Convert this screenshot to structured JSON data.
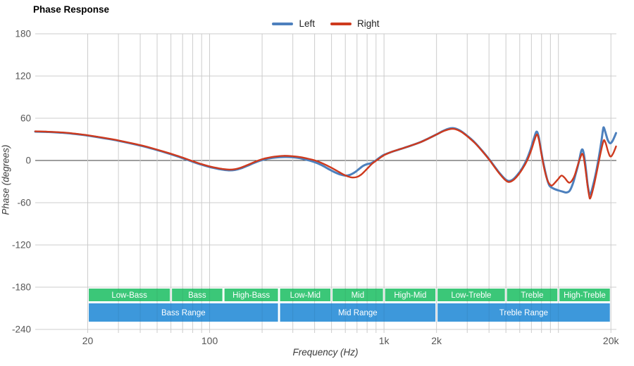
{
  "title": "Phase Response",
  "legend": {
    "items": [
      {
        "label": "Left"
      },
      {
        "label": "Right"
      }
    ]
  },
  "colors": {
    "left_series": "#4d80bd",
    "right_series": "#ce3a1e",
    "grid": "#cccccc",
    "zero_line": "#3c3c3c",
    "tick_text": "#565656",
    "band_sub": "#3bc778",
    "band_range": "#3d98db",
    "band_text": "#ffffff"
  },
  "chart_data": {
    "type": "line",
    "title": "Phase Response",
    "xlabel": "Frequency (Hz)",
    "ylabel": "Phase (degrees)",
    "x_scale": "log",
    "xlim_hz": [
      10,
      21500
    ],
    "ylim_degrees": [
      -240,
      180
    ],
    "grid": "on",
    "legend_position": "top-center",
    "y_ticks": [
      180,
      120,
      60,
      0,
      -60,
      -120,
      -180,
      -240
    ],
    "x_ticks": [
      {
        "label": "20",
        "hz": 20
      },
      {
        "label": "100",
        "hz": 100
      },
      {
        "label": "1k",
        "hz": 1000
      },
      {
        "label": "2k",
        "hz": 2000
      },
      {
        "label": "20k",
        "hz": 20000
      }
    ],
    "x_gridlines_hz": [
      20,
      30,
      40,
      50,
      60,
      70,
      80,
      90,
      100,
      200,
      300,
      400,
      500,
      600,
      700,
      800,
      900,
      1000,
      2000,
      3000,
      4000,
      5000,
      6000,
      7000,
      8000,
      9000,
      10000,
      20000
    ],
    "frequency_bands": {
      "sub_bands": [
        {
          "label": "Low-Bass",
          "from_hz": 20,
          "to_hz": 60
        },
        {
          "label": "Bass",
          "from_hz": 60,
          "to_hz": 120
        },
        {
          "label": "High-Bass",
          "from_hz": 120,
          "to_hz": 250
        },
        {
          "label": "Low-Mid",
          "from_hz": 250,
          "to_hz": 500
        },
        {
          "label": "Mid",
          "from_hz": 500,
          "to_hz": 1000
        },
        {
          "label": "High-Mid",
          "from_hz": 1000,
          "to_hz": 2000
        },
        {
          "label": "Low-Treble",
          "from_hz": 2000,
          "to_hz": 5000
        },
        {
          "label": "Treble",
          "from_hz": 5000,
          "to_hz": 10000
        },
        {
          "label": "High-Treble",
          "from_hz": 10000,
          "to_hz": 20000
        }
      ],
      "range_bands": [
        {
          "label": "Bass Range",
          "from_hz": 20,
          "to_hz": 250
        },
        {
          "label": "Mid Range",
          "from_hz": 250,
          "to_hz": 2000
        },
        {
          "label": "Treble Range",
          "from_hz": 2000,
          "to_hz": 20000
        }
      ]
    },
    "series": [
      {
        "name": "Left",
        "color": "#4d80bd",
        "stroke_width": 3,
        "points_hz_deg": [
          [
            10,
            41
          ],
          [
            11.5,
            40.6
          ],
          [
            13,
            40
          ],
          [
            15,
            39
          ],
          [
            17,
            37.6
          ],
          [
            20,
            35.4
          ],
          [
            23,
            33
          ],
          [
            26,
            30.8
          ],
          [
            30,
            28
          ],
          [
            35,
            24.5
          ],
          [
            40,
            21.2
          ],
          [
            45,
            18
          ],
          [
            50,
            14.8
          ],
          [
            56,
            11.2
          ],
          [
            63,
            7.2
          ],
          [
            71,
            2.8
          ],
          [
            80,
            -1.8
          ],
          [
            90,
            -6
          ],
          [
            100,
            -9.3
          ],
          [
            110,
            -11.5
          ],
          [
            120,
            -13.2
          ],
          [
            130,
            -14
          ],
          [
            140,
            -13.4
          ],
          [
            150,
            -11.5
          ],
          [
            165,
            -7.5
          ],
          [
            180,
            -3.4
          ],
          [
            195,
            -0.2
          ],
          [
            215,
            2.6
          ],
          [
            240,
            4.3
          ],
          [
            270,
            5
          ],
          [
            300,
            4.6
          ],
          [
            330,
            3.2
          ],
          [
            355,
            1.3
          ],
          [
            380,
            -0.6
          ],
          [
            410,
            -3.4
          ],
          [
            445,
            -7.4
          ],
          [
            480,
            -12
          ],
          [
            520,
            -16.5
          ],
          [
            560,
            -19.8
          ],
          [
            600,
            -21.5
          ],
          [
            640,
            -20.3
          ],
          [
            680,
            -16.8
          ],
          [
            720,
            -12
          ],
          [
            760,
            -7.6
          ],
          [
            800,
            -5.2
          ],
          [
            840,
            -4
          ],
          [
            880,
            -1.4
          ],
          [
            920,
            2
          ],
          [
            960,
            5.4
          ],
          [
            1000,
            8
          ],
          [
            1100,
            12
          ],
          [
            1250,
            16.4
          ],
          [
            1400,
            20.4
          ],
          [
            1600,
            25.6
          ],
          [
            1800,
            31.4
          ],
          [
            2000,
            37
          ],
          [
            2200,
            42.4
          ],
          [
            2400,
            45.8
          ],
          [
            2550,
            45.6
          ],
          [
            2750,
            42
          ],
          [
            3000,
            35
          ],
          [
            3300,
            26
          ],
          [
            3650,
            14
          ],
          [
            4000,
            2
          ],
          [
            4300,
            -8.5
          ],
          [
            4600,
            -18
          ],
          [
            4900,
            -25.5
          ],
          [
            5150,
            -29
          ],
          [
            5450,
            -27.5
          ],
          [
            5800,
            -21
          ],
          [
            6200,
            -11
          ],
          [
            6600,
            2
          ],
          [
            6950,
            17
          ],
          [
            7250,
            32
          ],
          [
            7500,
            41
          ],
          [
            7700,
            34
          ],
          [
            7900,
            18
          ],
          [
            8100,
            3
          ],
          [
            8300,
            -10
          ],
          [
            8600,
            -26
          ],
          [
            8900,
            -36
          ],
          [
            9400,
            -40
          ],
          [
            10000,
            -42.5
          ],
          [
            10600,
            -44.3
          ],
          [
            11100,
            -45.5
          ],
          [
            11600,
            -43
          ],
          [
            12100,
            -33
          ],
          [
            12600,
            -18
          ],
          [
            13100,
            -2
          ],
          [
            13500,
            13
          ],
          [
            13800,
            15
          ],
          [
            14100,
            4
          ],
          [
            14400,
            -14
          ],
          [
            14700,
            -34
          ],
          [
            15000,
            -46
          ],
          [
            15300,
            -47.5
          ],
          [
            15700,
            -38
          ],
          [
            16200,
            -24
          ],
          [
            16700,
            -8
          ],
          [
            17200,
            10
          ],
          [
            17700,
            30
          ],
          [
            18000,
            43
          ],
          [
            18200,
            47
          ],
          [
            18600,
            40
          ],
          [
            19200,
            29
          ],
          [
            19800,
            24.5
          ],
          [
            20400,
            27.5
          ],
          [
            21000,
            34
          ],
          [
            21400,
            39
          ]
        ]
      },
      {
        "name": "Right",
        "color": "#ce3a1e",
        "stroke_width": 2.4,
        "points_hz_deg": [
          [
            10,
            41.4
          ],
          [
            11.5,
            41
          ],
          [
            13,
            40.4
          ],
          [
            15,
            39.4
          ],
          [
            17,
            38
          ],
          [
            20,
            35.8
          ],
          [
            23,
            33.5
          ],
          [
            26,
            31.3
          ],
          [
            30,
            28.5
          ],
          [
            35,
            25
          ],
          [
            40,
            21.8
          ],
          [
            45,
            18.6
          ],
          [
            50,
            15.4
          ],
          [
            56,
            11.8
          ],
          [
            63,
            7.9
          ],
          [
            71,
            3.6
          ],
          [
            80,
            -1
          ],
          [
            90,
            -5.2
          ],
          [
            100,
            -8.4
          ],
          [
            110,
            -10.6
          ],
          [
            120,
            -12.2
          ],
          [
            130,
            -12.9
          ],
          [
            140,
            -12.3
          ],
          [
            150,
            -10.4
          ],
          [
            165,
            -6.4
          ],
          [
            180,
            -2.4
          ],
          [
            192,
            0.4
          ],
          [
            210,
            3.2
          ],
          [
            235,
            5.4
          ],
          [
            265,
            6.6
          ],
          [
            295,
            6.2
          ],
          [
            330,
            4.8
          ],
          [
            360,
            3
          ],
          [
            395,
            0.6
          ],
          [
            430,
            -2.6
          ],
          [
            465,
            -6.4
          ],
          [
            500,
            -10.4
          ],
          [
            540,
            -15
          ],
          [
            580,
            -19.4
          ],
          [
            620,
            -22.6
          ],
          [
            660,
            -24.2
          ],
          [
            700,
            -23.4
          ],
          [
            740,
            -20
          ],
          [
            780,
            -14.6
          ],
          [
            820,
            -9
          ],
          [
            860,
            -4
          ],
          [
            900,
            -0.4
          ],
          [
            940,
            3
          ],
          [
            980,
            6
          ],
          [
            1020,
            8.6
          ],
          [
            1120,
            12.8
          ],
          [
            1270,
            17
          ],
          [
            1420,
            21
          ],
          [
            1620,
            26
          ],
          [
            1820,
            31.8
          ],
          [
            2020,
            37.4
          ],
          [
            2220,
            42.2
          ],
          [
            2420,
            44.8
          ],
          [
            2570,
            44.4
          ],
          [
            2770,
            40.8
          ],
          [
            3020,
            33.8
          ],
          [
            3320,
            24.8
          ],
          [
            3670,
            12.8
          ],
          [
            4020,
            0.8
          ],
          [
            4320,
            -10
          ],
          [
            4620,
            -19.5
          ],
          [
            4920,
            -27
          ],
          [
            5170,
            -30.5
          ],
          [
            5470,
            -28.5
          ],
          [
            5820,
            -22
          ],
          [
            6220,
            -12
          ],
          [
            6620,
            0
          ],
          [
            6970,
            14
          ],
          [
            7270,
            28
          ],
          [
            7520,
            37
          ],
          [
            7720,
            30
          ],
          [
            7920,
            15
          ],
          [
            8120,
            0
          ],
          [
            8320,
            -13
          ],
          [
            8620,
            -27
          ],
          [
            8920,
            -34
          ],
          [
            9200,
            -35.5
          ],
          [
            9600,
            -31
          ],
          [
            10000,
            -26
          ],
          [
            10400,
            -21.5
          ],
          [
            10800,
            -24
          ],
          [
            11300,
            -30
          ],
          [
            11600,
            -31.5
          ],
          [
            12000,
            -28
          ],
          [
            12400,
            -21
          ],
          [
            12800,
            -10
          ],
          [
            13300,
            3
          ],
          [
            13700,
            9.5
          ],
          [
            14000,
            3
          ],
          [
            14300,
            -13
          ],
          [
            14700,
            -36
          ],
          [
            15000,
            -50
          ],
          [
            15200,
            -54
          ],
          [
            15600,
            -46
          ],
          [
            16100,
            -32
          ],
          [
            16600,
            -16
          ],
          [
            17100,
            0
          ],
          [
            17600,
            15
          ],
          [
            18000,
            25
          ],
          [
            18300,
            29
          ],
          [
            18700,
            24
          ],
          [
            19200,
            14
          ],
          [
            19700,
            6.5
          ],
          [
            20100,
            6
          ],
          [
            20600,
            10
          ],
          [
            21100,
            16
          ],
          [
            21400,
            20
          ]
        ]
      }
    ]
  }
}
